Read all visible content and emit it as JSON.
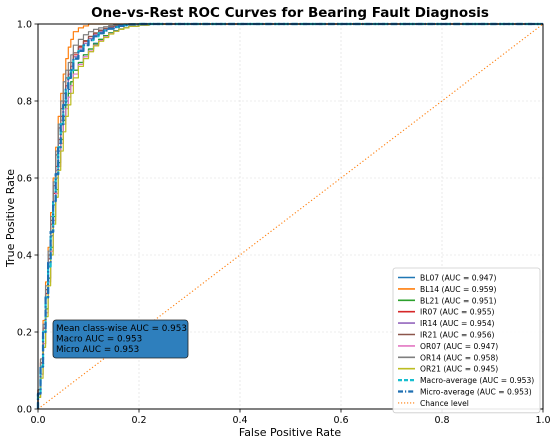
{
  "chart_data": {
    "type": "line",
    "title": "One-vs-Rest ROC Curves for Bearing Fault Diagnosis",
    "xlabel": "False Positive Rate",
    "ylabel": "True Positive Rate",
    "xlim": [
      0,
      1
    ],
    "ylim": [
      0,
      1
    ],
    "xticks": [
      "0.0",
      "0.2",
      "0.4",
      "0.6",
      "0.8",
      "1.0"
    ],
    "yticks": [
      "0.0",
      "0.2",
      "0.4",
      "0.6",
      "0.8",
      "1.0"
    ],
    "grid": true,
    "legend_position": "bottom-right",
    "annotation": {
      "lines": [
        "Mean class-wise AUC = 0.953",
        "Macro AUC = 0.953",
        "Micro AUC = 0.953"
      ],
      "box_color": "#2e7fbd"
    },
    "series": [
      {
        "name": "BL07 (AUC = 0.947)",
        "color": "#1f77b4",
        "style": "solid",
        "x": [
          0,
          0.005,
          0.01,
          0.015,
          0.02,
          0.025,
          0.03,
          0.035,
          0.04,
          0.045,
          0.05,
          0.055,
          0.06,
          0.065,
          0.07,
          0.08,
          0.09,
          0.1,
          0.11,
          0.12,
          0.13,
          0.14,
          0.15,
          0.16,
          0.17,
          0.18,
          0.2,
          0.22,
          0.25,
          0.3,
          0.4,
          0.6,
          0.8,
          1.0
        ],
        "y": [
          0,
          0.04,
          0.11,
          0.2,
          0.29,
          0.37,
          0.45,
          0.53,
          0.6,
          0.67,
          0.72,
          0.76,
          0.8,
          0.83,
          0.85,
          0.88,
          0.9,
          0.92,
          0.935,
          0.95,
          0.96,
          0.97,
          0.977,
          0.983,
          0.987,
          0.99,
          0.994,
          0.997,
          0.999,
          1,
          1,
          1,
          1,
          1
        ]
      },
      {
        "name": "BL14 (AUC = 0.959)",
        "color": "#ff7f0e",
        "style": "solid",
        "x": [
          0,
          0.005,
          0.01,
          0.015,
          0.02,
          0.025,
          0.03,
          0.035,
          0.04,
          0.045,
          0.05,
          0.055,
          0.06,
          0.065,
          0.07,
          0.08,
          0.09,
          0.1,
          0.11,
          0.12,
          0.13,
          0.14,
          0.15,
          0.16,
          0.17,
          0.18,
          0.2,
          0.22,
          0.25,
          0.3,
          0.4,
          0.6,
          0.8,
          1.0
        ],
        "y": [
          0,
          0.05,
          0.13,
          0.23,
          0.33,
          0.42,
          0.51,
          0.6,
          0.68,
          0.76,
          0.82,
          0.87,
          0.91,
          0.94,
          0.96,
          0.98,
          0.99,
          0.995,
          1,
          1,
          1,
          1,
          1,
          1,
          1,
          1,
          1,
          1,
          1,
          1,
          1,
          1,
          1,
          1
        ]
      },
      {
        "name": "BL21 (AUC = 0.951)",
        "color": "#2ca02c",
        "style": "solid",
        "x": [
          0,
          0.005,
          0.01,
          0.015,
          0.02,
          0.025,
          0.03,
          0.035,
          0.04,
          0.045,
          0.05,
          0.055,
          0.06,
          0.065,
          0.07,
          0.08,
          0.09,
          0.1,
          0.11,
          0.12,
          0.13,
          0.14,
          0.15,
          0.16,
          0.17,
          0.18,
          0.2,
          0.22,
          0.25,
          0.3,
          0.4,
          0.6,
          0.8,
          1.0
        ],
        "y": [
          0,
          0.03,
          0.09,
          0.17,
          0.26,
          0.34,
          0.42,
          0.5,
          0.57,
          0.64,
          0.7,
          0.75,
          0.79,
          0.82,
          0.85,
          0.88,
          0.9,
          0.92,
          0.935,
          0.948,
          0.96,
          0.97,
          0.977,
          0.982,
          0.987,
          0.99,
          0.994,
          0.997,
          0.999,
          1,
          1,
          1,
          1,
          1
        ]
      },
      {
        "name": "IR07 (AUC = 0.955)",
        "color": "#d62728",
        "style": "solid",
        "x": [
          0,
          0.005,
          0.01,
          0.015,
          0.02,
          0.025,
          0.03,
          0.035,
          0.04,
          0.045,
          0.05,
          0.055,
          0.06,
          0.065,
          0.07,
          0.08,
          0.09,
          0.1,
          0.11,
          0.12,
          0.13,
          0.14,
          0.15,
          0.16,
          0.17,
          0.18,
          0.2,
          0.22,
          0.25,
          0.3,
          0.4,
          0.6,
          0.8,
          1.0
        ],
        "y": [
          0,
          0.05,
          0.12,
          0.21,
          0.3,
          0.39,
          0.48,
          0.56,
          0.63,
          0.7,
          0.76,
          0.8,
          0.84,
          0.87,
          0.89,
          0.92,
          0.94,
          0.955,
          0.967,
          0.976,
          0.983,
          0.988,
          0.992,
          0.995,
          0.997,
          0.998,
          0.999,
          1,
          1,
          1,
          1,
          1,
          1,
          1
        ]
      },
      {
        "name": "IR14 (AUC = 0.954)",
        "color": "#9467bd",
        "style": "solid",
        "x": [
          0,
          0.005,
          0.01,
          0.015,
          0.02,
          0.025,
          0.03,
          0.035,
          0.04,
          0.045,
          0.05,
          0.055,
          0.06,
          0.065,
          0.07,
          0.08,
          0.09,
          0.1,
          0.11,
          0.12,
          0.13,
          0.14,
          0.15,
          0.16,
          0.17,
          0.18,
          0.2,
          0.22,
          0.25,
          0.3,
          0.4,
          0.6,
          0.8,
          1.0
        ],
        "y": [
          0,
          0.04,
          0.11,
          0.2,
          0.29,
          0.38,
          0.46,
          0.54,
          0.62,
          0.69,
          0.75,
          0.8,
          0.84,
          0.87,
          0.89,
          0.915,
          0.935,
          0.95,
          0.962,
          0.972,
          0.98,
          0.986,
          0.99,
          0.993,
          0.996,
          0.998,
          0.999,
          1,
          1,
          1,
          1,
          1,
          1,
          1
        ]
      },
      {
        "name": "IR21 (AUC = 0.956)",
        "color": "#8c564b",
        "style": "solid",
        "x": [
          0,
          0.005,
          0.01,
          0.015,
          0.02,
          0.025,
          0.03,
          0.035,
          0.04,
          0.045,
          0.05,
          0.055,
          0.06,
          0.065,
          0.07,
          0.08,
          0.09,
          0.1,
          0.11,
          0.12,
          0.13,
          0.14,
          0.15,
          0.16,
          0.17,
          0.18,
          0.2,
          0.22,
          0.25,
          0.3,
          0.4,
          0.6,
          0.8,
          1.0
        ],
        "y": [
          0,
          0.05,
          0.12,
          0.22,
          0.31,
          0.4,
          0.49,
          0.58,
          0.66,
          0.73,
          0.78,
          0.82,
          0.86,
          0.88,
          0.9,
          0.925,
          0.943,
          0.957,
          0.968,
          0.977,
          0.984,
          0.989,
          0.993,
          0.996,
          0.998,
          0.999,
          1,
          1,
          1,
          1,
          1,
          1,
          1,
          1
        ]
      },
      {
        "name": "OR07 (AUC = 0.947)",
        "color": "#e377c2",
        "style": "solid",
        "x": [
          0,
          0.005,
          0.01,
          0.015,
          0.02,
          0.025,
          0.03,
          0.035,
          0.04,
          0.045,
          0.05,
          0.055,
          0.06,
          0.065,
          0.07,
          0.08,
          0.09,
          0.1,
          0.11,
          0.12,
          0.13,
          0.14,
          0.15,
          0.16,
          0.17,
          0.18,
          0.2,
          0.22,
          0.25,
          0.3,
          0.4,
          0.6,
          0.8,
          1.0
        ],
        "y": [
          0,
          0.03,
          0.09,
          0.17,
          0.25,
          0.33,
          0.41,
          0.49,
          0.56,
          0.63,
          0.69,
          0.74,
          0.78,
          0.81,
          0.84,
          0.87,
          0.895,
          0.915,
          0.93,
          0.945,
          0.957,
          0.967,
          0.975,
          0.981,
          0.986,
          0.99,
          0.994,
          0.997,
          0.999,
          1,
          1,
          1,
          1,
          1
        ]
      },
      {
        "name": "OR14 (AUC = 0.958)",
        "color": "#7f7f7f",
        "style": "solid",
        "x": [
          0,
          0.005,
          0.01,
          0.015,
          0.02,
          0.025,
          0.03,
          0.035,
          0.04,
          0.045,
          0.05,
          0.055,
          0.06,
          0.065,
          0.07,
          0.08,
          0.09,
          0.1,
          0.11,
          0.12,
          0.13,
          0.14,
          0.15,
          0.16,
          0.17,
          0.18,
          0.2,
          0.22,
          0.25,
          0.3,
          0.4,
          0.6,
          0.8,
          1.0
        ],
        "y": [
          0,
          0.05,
          0.13,
          0.22,
          0.32,
          0.41,
          0.5,
          0.59,
          0.67,
          0.74,
          0.8,
          0.85,
          0.88,
          0.9,
          0.92,
          0.945,
          0.96,
          0.972,
          0.98,
          0.986,
          0.99,
          0.993,
          0.996,
          0.998,
          0.999,
          1,
          1,
          1,
          1,
          1,
          1,
          1,
          1,
          1
        ]
      },
      {
        "name": "OR21 (AUC = 0.945)",
        "color": "#bcbd22",
        "style": "solid",
        "x": [
          0,
          0.005,
          0.01,
          0.015,
          0.02,
          0.025,
          0.03,
          0.035,
          0.04,
          0.045,
          0.05,
          0.055,
          0.06,
          0.065,
          0.07,
          0.08,
          0.09,
          0.1,
          0.11,
          0.12,
          0.13,
          0.14,
          0.15,
          0.16,
          0.17,
          0.18,
          0.2,
          0.22,
          0.25,
          0.3,
          0.4,
          0.6,
          0.8,
          1.0
        ],
        "y": [
          0,
          0.03,
          0.08,
          0.16,
          0.24,
          0.32,
          0.4,
          0.48,
          0.55,
          0.62,
          0.67,
          0.72,
          0.76,
          0.79,
          0.82,
          0.86,
          0.89,
          0.91,
          0.928,
          0.943,
          0.955,
          0.965,
          0.974,
          0.981,
          0.986,
          0.99,
          0.994,
          0.997,
          0.999,
          1,
          1,
          1,
          1,
          1
        ]
      },
      {
        "name": "Macro-average (AUC = 0.953)",
        "color": "#17becf",
        "style": "dashed",
        "x": [
          0,
          0.005,
          0.01,
          0.015,
          0.02,
          0.025,
          0.03,
          0.035,
          0.04,
          0.045,
          0.05,
          0.055,
          0.06,
          0.065,
          0.07,
          0.08,
          0.09,
          0.1,
          0.11,
          0.12,
          0.13,
          0.14,
          0.15,
          0.16,
          0.17,
          0.18,
          0.2,
          0.22,
          0.25,
          0.3,
          0.4,
          0.6,
          0.8,
          1.0
        ],
        "y": [
          0,
          0.04,
          0.11,
          0.2,
          0.29,
          0.37,
          0.46,
          0.54,
          0.61,
          0.68,
          0.74,
          0.79,
          0.83,
          0.86,
          0.88,
          0.91,
          0.93,
          0.945,
          0.958,
          0.968,
          0.976,
          0.983,
          0.988,
          0.992,
          0.995,
          0.997,
          0.999,
          1,
          1,
          1,
          1,
          1,
          1,
          1
        ]
      },
      {
        "name": "Micro-average (AUC = 0.953)",
        "color": "#1f6fb2",
        "style": "dashdot",
        "x": [
          0,
          0.005,
          0.01,
          0.015,
          0.02,
          0.025,
          0.03,
          0.035,
          0.04,
          0.045,
          0.05,
          0.055,
          0.06,
          0.065,
          0.07,
          0.08,
          0.09,
          0.1,
          0.11,
          0.12,
          0.13,
          0.14,
          0.15,
          0.16,
          0.17,
          0.18,
          0.2,
          0.22,
          0.25,
          0.3,
          0.4,
          0.6,
          0.8,
          1.0
        ],
        "y": [
          0,
          0.04,
          0.11,
          0.2,
          0.29,
          0.38,
          0.46,
          0.54,
          0.61,
          0.68,
          0.74,
          0.79,
          0.83,
          0.86,
          0.88,
          0.91,
          0.93,
          0.945,
          0.958,
          0.968,
          0.976,
          0.983,
          0.988,
          0.992,
          0.995,
          0.997,
          0.999,
          1,
          1,
          1,
          1,
          1,
          1,
          1
        ]
      },
      {
        "name": "Chance level",
        "color": "#ff7f0e",
        "style": "dotted",
        "x": [
          0,
          1
        ],
        "y": [
          0,
          1
        ]
      }
    ]
  }
}
